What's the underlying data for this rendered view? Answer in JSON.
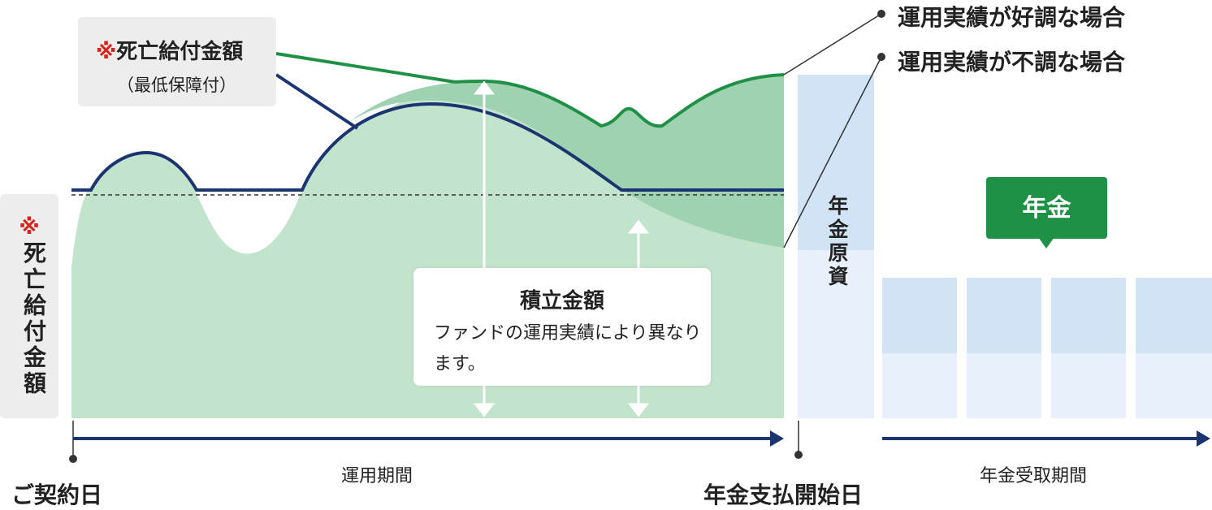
{
  "death_benefit_callout": {
    "mark": "※",
    "title": "死亡給付金額",
    "subtitle": "（最低保障付）"
  },
  "side_label": {
    "mark": "※",
    "text": "死亡給付金額"
  },
  "legend": {
    "good": "運用実績が好調な場合",
    "bad": "運用実績が不調な場合"
  },
  "accumulation_box": {
    "title": "積立金額",
    "description": "ファンドの運用実績により異なります。"
  },
  "pension_principal": "年金原資",
  "pension_badge": "年金",
  "timeline": {
    "contract_date": "ご契約日",
    "investment_period": "運用期間",
    "pension_start_date": "年金支払開始日",
    "receipt_period": "年金受取期間"
  },
  "colors": {
    "good_line": "#1f9147",
    "bad_line": "#1b3571",
    "fill_light": "#c3e4cc",
    "fill_mid": "#9fd2b0",
    "principal_blue": "#d2e3f6",
    "principal_light": "#e8f1fb",
    "badge_green": "#1f9147",
    "note_red": "#d6241e"
  }
}
